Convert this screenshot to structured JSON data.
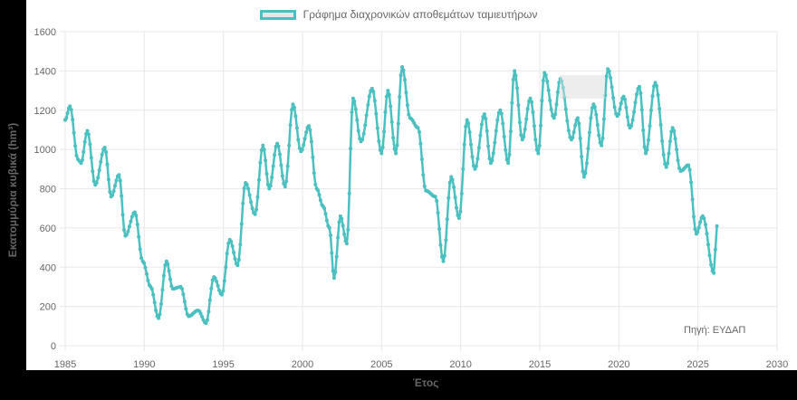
{
  "legend": {
    "label": "Γράφημα διαχρονικών αποθεμάτων ταμιευτήρων",
    "border_color": "#4bc0c0",
    "fill_color": "#e6e6e6"
  },
  "axes": {
    "xlabel": "Έτος",
    "ylabel": "Εκατομμύρια κυβικά (hm³)",
    "xticks": [
      "1985",
      "1990",
      "1995",
      "2000",
      "2005",
      "2010",
      "2015",
      "2020",
      "2025",
      "2030"
    ],
    "yticks": [
      "0",
      "200",
      "400",
      "600",
      "800",
      "1000",
      "1200",
      "1400",
      "1600"
    ]
  },
  "source": "Πηγή: ΕΥΔΑΠ",
  "chart_data": {
    "type": "line",
    "title": "Γράφημα διαχρονικών αποθεμάτων ταμιευτήρων",
    "xlabel": "Έτος",
    "ylabel": "Εκατομμύρια κυβικά (hm³)",
    "xlim": [
      1985,
      2030
    ],
    "ylim": [
      0,
      1600
    ],
    "grid": true,
    "legend_position": "top",
    "series": [
      {
        "name": "Γράφημα διαχρονικών αποθεμάτων ταμιευτήρων",
        "color": "#4bc0c0",
        "points": [
          [
            1985.0,
            1150
          ],
          [
            1985.3,
            1220
          ],
          [
            1985.8,
            950
          ],
          [
            1986.0,
            930
          ],
          [
            1986.4,
            1095
          ],
          [
            1986.9,
            820
          ],
          [
            1987.5,
            1010
          ],
          [
            1987.9,
            760
          ],
          [
            1988.4,
            870
          ],
          [
            1988.8,
            560
          ],
          [
            1989.4,
            680
          ],
          [
            1989.9,
            430
          ],
          [
            1990.4,
            300
          ],
          [
            1990.9,
            140
          ],
          [
            1991.4,
            430
          ],
          [
            1991.8,
            290
          ],
          [
            1992.3,
            300
          ],
          [
            1992.8,
            150
          ],
          [
            1993.4,
            180
          ],
          [
            1993.9,
            115
          ],
          [
            1994.4,
            350
          ],
          [
            1994.9,
            260
          ],
          [
            1995.4,
            540
          ],
          [
            1995.9,
            410
          ],
          [
            1996.4,
            830
          ],
          [
            1997.0,
            670
          ],
          [
            1997.5,
            1020
          ],
          [
            1997.9,
            800
          ],
          [
            1998.4,
            1030
          ],
          [
            1998.9,
            810
          ],
          [
            1999.4,
            1230
          ],
          [
            1999.9,
            990
          ],
          [
            2000.4,
            1120
          ],
          [
            2000.9,
            800
          ],
          [
            2001.3,
            710
          ],
          [
            2001.7,
            600
          ],
          [
            2002.0,
            345
          ],
          [
            2002.4,
            660
          ],
          [
            2002.8,
            520
          ],
          [
            2003.2,
            1260
          ],
          [
            2003.7,
            1040
          ],
          [
            2004.4,
            1310
          ],
          [
            2005.0,
            980
          ],
          [
            2005.4,
            1300
          ],
          [
            2005.9,
            980
          ],
          [
            2006.3,
            1420
          ],
          [
            2006.8,
            1160
          ],
          [
            2007.3,
            1110
          ],
          [
            2007.8,
            790
          ],
          [
            2008.4,
            760
          ],
          [
            2008.9,
            430
          ],
          [
            2009.4,
            860
          ],
          [
            2009.9,
            650
          ],
          [
            2010.4,
            1150
          ],
          [
            2010.9,
            900
          ],
          [
            2011.5,
            1180
          ],
          [
            2011.9,
            930
          ],
          [
            2012.5,
            1200
          ],
          [
            2013.0,
            930
          ],
          [
            2013.4,
            1400
          ],
          [
            2013.9,
            1050
          ],
          [
            2014.4,
            1260
          ],
          [
            2014.9,
            980
          ],
          [
            2015.3,
            1390
          ],
          [
            2015.9,
            1160
          ],
          [
            2016.3,
            1360
          ],
          [
            2017.0,
            1050
          ],
          [
            2017.4,
            1160
          ],
          [
            2017.8,
            860
          ],
          [
            2018.4,
            1230
          ],
          [
            2018.9,
            1020
          ],
          [
            2019.3,
            1410
          ],
          [
            2019.9,
            1170
          ],
          [
            2020.3,
            1270
          ],
          [
            2020.7,
            1110
          ],
          [
            2021.3,
            1320
          ],
          [
            2021.7,
            980
          ],
          [
            2022.3,
            1340
          ],
          [
            2023.0,
            910
          ],
          [
            2023.4,
            1110
          ],
          [
            2023.9,
            890
          ],
          [
            2024.4,
            920
          ],
          [
            2024.9,
            570
          ],
          [
            2025.3,
            660
          ],
          [
            2026.0,
            370
          ],
          [
            2026.2,
            610
          ]
        ]
      }
    ]
  }
}
